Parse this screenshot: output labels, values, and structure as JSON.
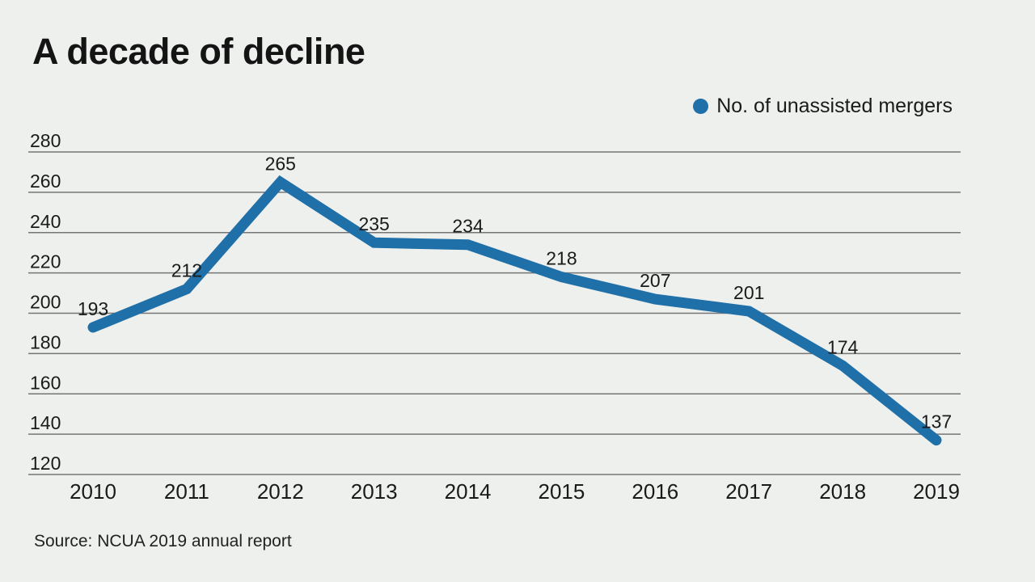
{
  "title": "A decade of decline",
  "legend": {
    "label": "No. of unassisted mergers",
    "marker_color": "#1f6fa8"
  },
  "source": "Source: NCUA 2019 annual report",
  "colors": {
    "background": "#eef0ee",
    "line": "#1f6fa8",
    "gridline": "#757575",
    "text": "#1a1a1a"
  },
  "chart_data": {
    "type": "line",
    "title": "A decade of decline",
    "x": [
      2010,
      2011,
      2012,
      2013,
      2014,
      2015,
      2016,
      2017,
      2018,
      2019
    ],
    "series": [
      {
        "name": "No. of unassisted mergers",
        "values": [
          193,
          212,
          265,
          235,
          234,
          218,
          207,
          201,
          174,
          137
        ]
      }
    ],
    "xlabel": "",
    "ylabel": "",
    "ylim": [
      120,
      280
    ],
    "yticks": [
      280,
      260,
      240,
      220,
      200,
      180,
      160,
      140,
      120
    ],
    "grid": true,
    "legend_position": "top-right",
    "data_labels": true,
    "source_note": "Source: NCUA 2019 annual report"
  }
}
